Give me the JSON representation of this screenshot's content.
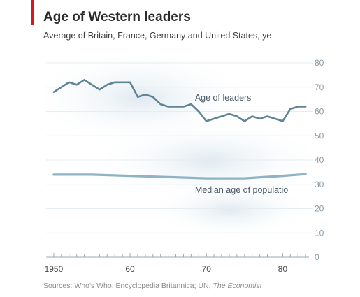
{
  "chart_data": {
    "type": "line",
    "title": "Age of Western leaders",
    "subtitle": "Average of Britain, France, Germany and United States, ye",
    "xlabel": "",
    "ylabel": "",
    "xlim": [
      1949,
      1984
    ],
    "ylim": [
      0,
      80
    ],
    "y_axis_side": "right",
    "y_ticks": [
      0,
      10,
      20,
      30,
      40,
      50,
      60,
      70,
      80
    ],
    "x_ticks": [
      {
        "value": 1950,
        "label": "1950"
      },
      {
        "value": 1960,
        "label": "60"
      },
      {
        "value": 1970,
        "label": "70"
      },
      {
        "value": 1980,
        "label": "80"
      }
    ],
    "grid": true,
    "series": [
      {
        "name": "Age of leaders",
        "color": "#5f8496",
        "x": [
          1950,
          1952,
          1953,
          1954,
          1955,
          1956,
          1957,
          1958,
          1959,
          1960,
          1961,
          1962,
          1963,
          1964,
          1965,
          1966,
          1967,
          1968,
          1969,
          1970,
          1971,
          1972,
          1973,
          1974,
          1975,
          1976,
          1977,
          1978,
          1979,
          1980,
          1981,
          1982,
          1983
        ],
        "y": [
          68,
          72,
          71,
          73,
          71,
          69,
          71,
          72,
          72,
          72,
          66,
          67,
          66,
          63,
          62,
          62,
          62,
          63,
          60,
          56,
          57,
          58,
          59,
          58,
          56,
          58,
          57,
          58,
          57,
          56,
          61,
          62,
          62
        ]
      },
      {
        "name": "Median age of populatio",
        "color": "#8fb3c4",
        "x": [
          1950,
          1955,
          1960,
          1965,
          1970,
          1975,
          1980,
          1983
        ],
        "y": [
          34,
          34,
          33.5,
          33,
          32.5,
          32.5,
          33.5,
          34.2
        ]
      }
    ]
  },
  "source": {
    "text": "Sources: Who's Who; Encyclopedia Britannica; UN;",
    "italic": "The Economist"
  }
}
